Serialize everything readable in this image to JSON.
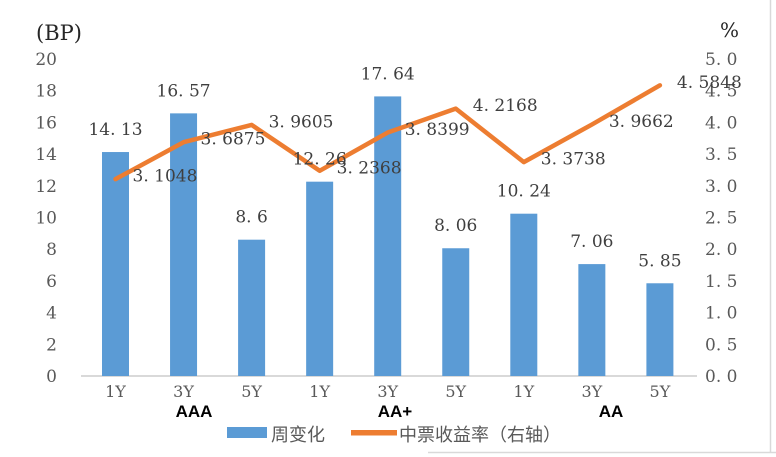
{
  "chart_data": {
    "type": "bar",
    "subtype": "combo-bar-line-dual-axis",
    "title": "",
    "categories": [
      "1Y",
      "3Y",
      "5Y",
      "1Y",
      "3Y",
      "5Y",
      "1Y",
      "3Y",
      "5Y"
    ],
    "category_groups": [
      "AAA",
      "AA+",
      "AA"
    ],
    "series": [
      {
        "name": "周变化",
        "type": "bar",
        "axis": "left",
        "color": "#5B9BD5",
        "values": [
          14.13,
          16.57,
          8.6,
          12.26,
          17.64,
          8.06,
          10.24,
          7.06,
          5.85
        ],
        "labels": [
          "14. 13",
          "16. 57",
          "8. 6",
          "12. 26",
          "17. 64",
          "8. 06",
          "10. 24",
          "7. 06",
          "5. 85"
        ]
      },
      {
        "name": "中票收益率（右轴）",
        "type": "line",
        "axis": "right",
        "color": "#ED7D31",
        "values": [
          3.1048,
          3.6875,
          3.9605,
          3.2368,
          3.8399,
          4.2168,
          3.3738,
          3.9662,
          4.5848
        ],
        "labels": [
          "3. 1048",
          "3. 6875",
          "3. 9605",
          "3. 2368",
          "3. 8399",
          "4. 2168",
          "3. 3738",
          "3. 9662",
          "4. 5848"
        ]
      }
    ],
    "left_axis": {
      "unit": "(BP)",
      "min": 0,
      "max": 20,
      "step": 2,
      "tick_labels": [
        "0",
        "2",
        "4",
        "6",
        "8",
        "10",
        "12",
        "14",
        "16",
        "18",
        "20"
      ]
    },
    "right_axis": {
      "unit": "%",
      "min": 0,
      "max": 5,
      "step": 0.5,
      "tick_labels": [
        "0. 0",
        "0. 5",
        "1. 0",
        "1. 5",
        "2. 0",
        "2. 5",
        "3. 0",
        "3. 5",
        "4. 0",
        "4. 5",
        "5. 0"
      ]
    },
    "legend": {
      "position": "bottom",
      "entries": [
        {
          "label": "周变化",
          "swatch": "bar",
          "color": "#5B9BD5"
        },
        {
          "label": "中票收益率（右轴）",
          "swatch": "line",
          "color": "#ED7D31"
        }
      ]
    },
    "grid": false,
    "colors": {
      "bar": "#5B9BD5",
      "line": "#ED7D31",
      "axis_text": "#595959",
      "data_label_text": "#3f3f3f",
      "category_text": "#595959",
      "group_label_text": "#000000",
      "baseline": "#d9d9d9",
      "frame": "#d9d9d9",
      "unit_text": "#262626"
    }
  }
}
